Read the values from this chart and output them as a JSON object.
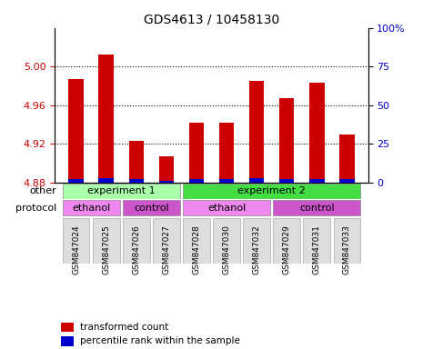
{
  "title": "GDS4613 / 10458130",
  "samples": [
    "GSM847024",
    "GSM847025",
    "GSM847026",
    "GSM847027",
    "GSM847028",
    "GSM847030",
    "GSM847032",
    "GSM847029",
    "GSM847031",
    "GSM847033"
  ],
  "transformed_count": [
    4.987,
    5.012,
    4.923,
    4.907,
    4.942,
    4.942,
    4.985,
    4.967,
    4.983,
    4.93
  ],
  "percentile_rank": [
    2,
    3,
    2,
    1,
    2,
    2,
    3,
    2,
    2,
    2
  ],
  "ylim_left": [
    4.88,
    5.04
  ],
  "ylim_right": [
    0,
    100
  ],
  "yticks_left": [
    4.88,
    4.92,
    4.96,
    5.0
  ],
  "yticks_right": [
    0,
    25,
    50,
    75,
    100
  ],
  "ytick_labels_right": [
    "0",
    "25",
    "50",
    "75",
    "100%"
  ],
  "bar_color_red": "#cc0000",
  "bar_color_blue": "#0000cc",
  "grid_color": "#000000",
  "background_color": "#ffffff",
  "experiment_groups": {
    "experiment 1": {
      "start": 0,
      "end": 3,
      "color": "#aaffaa"
    },
    "experiment 2": {
      "start": 4,
      "end": 9,
      "color": "#44dd44"
    }
  },
  "protocol_groups": [
    {
      "label": "ethanol",
      "start": 0,
      "end": 1,
      "color": "#ee88ee"
    },
    {
      "label": "control",
      "start": 2,
      "end": 3,
      "color": "#dd66dd"
    },
    {
      "label": "ethanol",
      "start": 4,
      "end": 6,
      "color": "#ee88ee"
    },
    {
      "label": "control",
      "start": 7,
      "end": 9,
      "color": "#dd66dd"
    }
  ],
  "legend_items": [
    {
      "label": "transformed count",
      "color": "#cc0000"
    },
    {
      "label": "percentile rank within the sample",
      "color": "#0000cc"
    }
  ],
  "other_label": "other",
  "protocol_label": "protocol",
  "left_axis_color": "#cc0000",
  "right_axis_color": "#0000cc"
}
